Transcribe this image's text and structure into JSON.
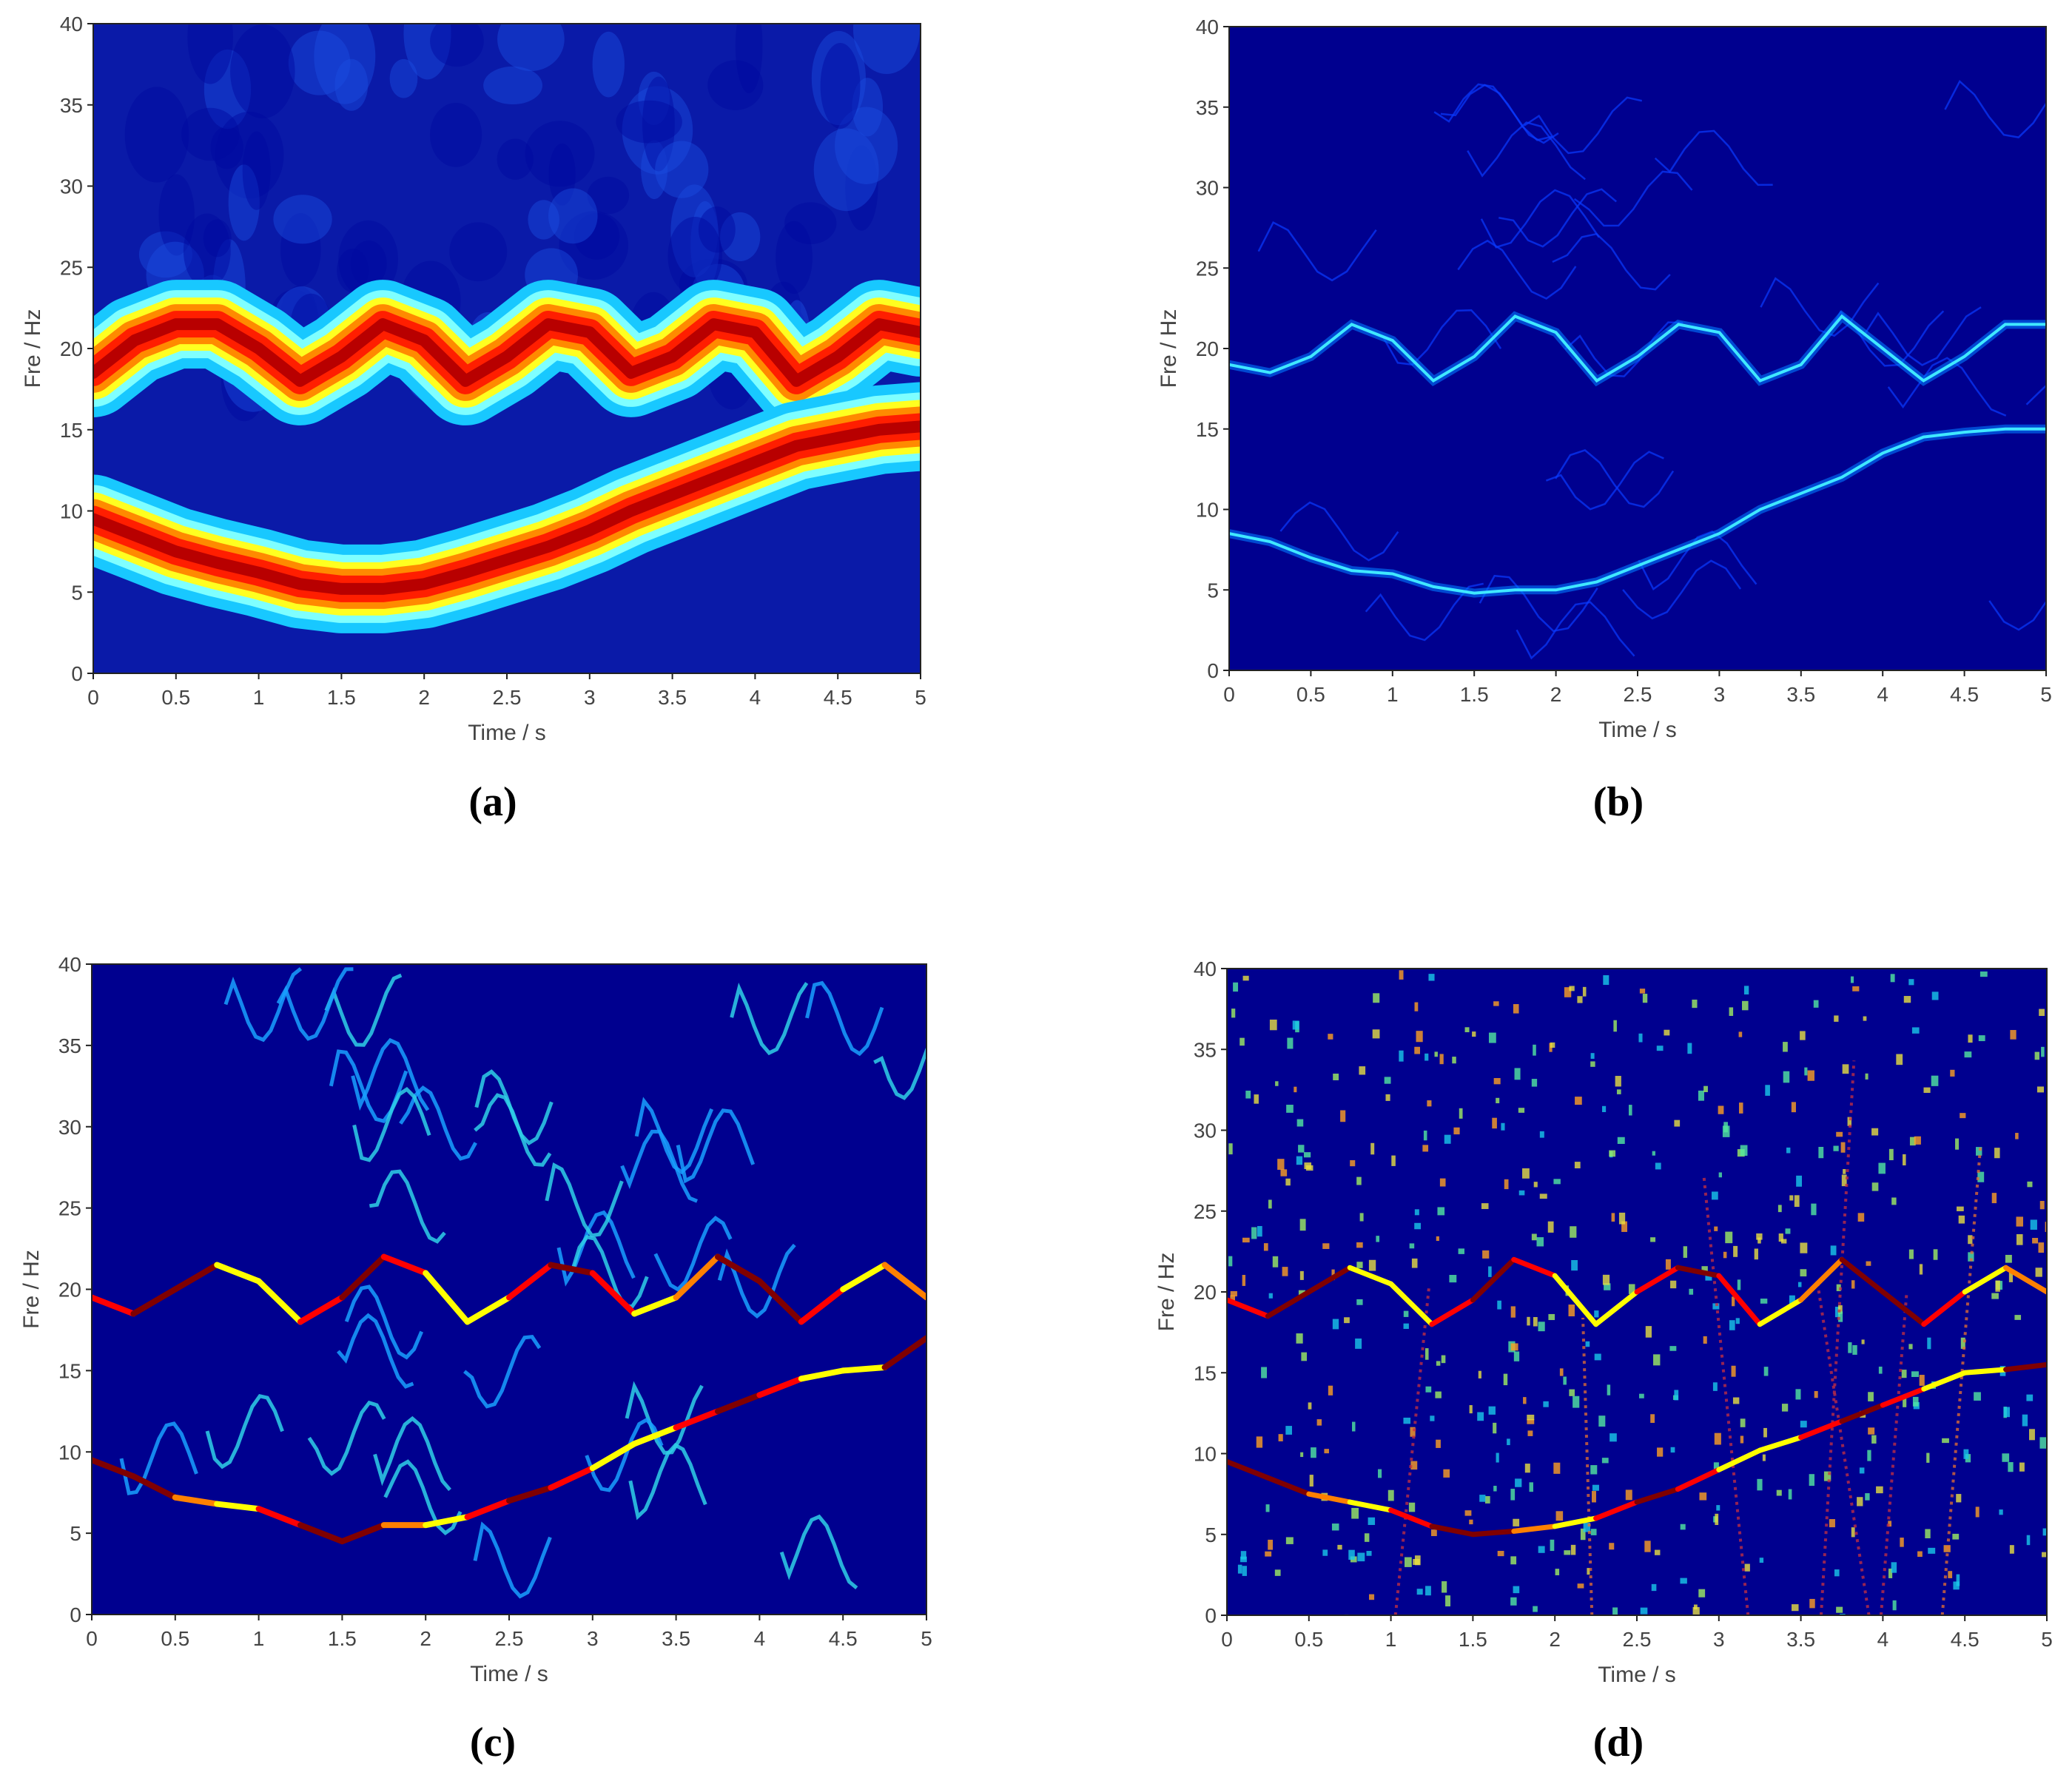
{
  "figure": {
    "panel_labels": [
      "(a)",
      "(b)",
      "(c)",
      "(d)"
    ]
  },
  "colormap": [
    "#00008f",
    "#0000ff",
    "#0080ff",
    "#00ffff",
    "#80ff80",
    "#ffff00",
    "#ff8000",
    "#ff0000",
    "#800000"
  ],
  "chart_data": [
    {
      "id": "a",
      "type": "heatmap",
      "title": "",
      "xlabel": "Time / s",
      "ylabel": "Fre / Hz",
      "xlim": [
        0,
        5
      ],
      "ylim": [
        0,
        40
      ],
      "xticks": [
        0,
        0.5,
        1,
        1.5,
        2,
        2.5,
        3,
        3.5,
        4,
        4.5,
        5
      ],
      "yticks": [
        0,
        5,
        10,
        15,
        20,
        25,
        30,
        35,
        40
      ],
      "xtick_labels": [
        "0",
        "0.5",
        "1",
        "1.5",
        "2",
        "2.5",
        "3",
        "3.5",
        "4",
        "4.5",
        "5"
      ],
      "ytick_labels": [
        "0",
        "5",
        "10",
        "15",
        "20",
        "25",
        "30",
        "35",
        "40"
      ],
      "style": "smooth",
      "series": [
        {
          "t": [
            0,
            0.25,
            0.5,
            0.75,
            1,
            1.25,
            1.5,
            1.75,
            2,
            2.25,
            2.5,
            2.75,
            3,
            3.25,
            3.5,
            3.75,
            4,
            4.25,
            4.5,
            4.75,
            5
          ],
          "f": [
            18.5,
            20.5,
            21.5,
            21.5,
            20,
            18,
            19.5,
            21.5,
            20.5,
            18,
            19.5,
            21.5,
            21,
            18.5,
            19.5,
            21.5,
            21,
            18,
            19.5,
            21.5,
            21
          ]
        },
        {
          "t": [
            0,
            0.25,
            0.5,
            0.75,
            1,
            1.25,
            1.5,
            1.75,
            2,
            2.25,
            2.5,
            2.75,
            3,
            3.25,
            3.5,
            3.75,
            4,
            4.25,
            4.5,
            4.75,
            5
          ],
          "f": [
            9.5,
            8.5,
            7.5,
            6.8,
            6.2,
            5.5,
            5.2,
            5.2,
            5.5,
            6.2,
            7,
            7.8,
            8.8,
            10,
            11,
            12,
            13,
            14,
            14.5,
            15,
            15.2
          ]
        }
      ]
    },
    {
      "id": "b",
      "type": "heatmap",
      "title": "",
      "xlabel": "Time / s",
      "ylabel": "Fre / Hz",
      "xlim": [
        0,
        5
      ],
      "ylim": [
        0,
        40
      ],
      "xticks": [
        0,
        0.5,
        1,
        1.5,
        2,
        2.5,
        3,
        3.5,
        4,
        4.5,
        5
      ],
      "yticks": [
        0,
        5,
        10,
        15,
        20,
        25,
        30,
        35,
        40
      ],
      "xtick_labels": [
        "0",
        "0.5",
        "1",
        "1.5",
        "2",
        "2.5",
        "3",
        "3.5",
        "4",
        "4.5",
        "5"
      ],
      "ytick_labels": [
        "0",
        "5",
        "10",
        "15",
        "20",
        "25",
        "30",
        "35",
        "40"
      ],
      "style": "thin",
      "series": [
        {
          "t": [
            0,
            0.25,
            0.5,
            0.75,
            1,
            1.25,
            1.5,
            1.75,
            2,
            2.25,
            2.5,
            2.75,
            3,
            3.25,
            3.5,
            3.75,
            4,
            4.25,
            4.5,
            4.75,
            5
          ],
          "f": [
            19,
            18.5,
            19.5,
            21.5,
            20.5,
            18,
            19.5,
            22,
            21,
            18,
            19.5,
            21.5,
            21,
            18,
            19,
            22,
            20,
            18,
            19.5,
            21.5,
            21.5
          ]
        },
        {
          "t": [
            0,
            0.25,
            0.5,
            0.75,
            1,
            1.25,
            1.5,
            1.75,
            2,
            2.25,
            2.5,
            2.75,
            3,
            3.25,
            3.5,
            3.75,
            4,
            4.25,
            4.5,
            4.75,
            5
          ],
          "f": [
            8.5,
            8,
            7,
            6.2,
            6,
            5.2,
            4.8,
            5,
            5,
            5.5,
            6.5,
            7.5,
            8.5,
            10,
            11,
            12,
            13.5,
            14.5,
            14.8,
            15,
            15
          ]
        }
      ]
    },
    {
      "id": "c",
      "type": "heatmap",
      "title": "",
      "xlabel": "Time / s",
      "ylabel": "Fre / Hz",
      "xlim": [
        0,
        5
      ],
      "ylim": [
        0,
        40
      ],
      "xticks": [
        0,
        0.5,
        1,
        1.5,
        2,
        2.5,
        3,
        3.5,
        4,
        4.5,
        5
      ],
      "yticks": [
        0,
        5,
        10,
        15,
        20,
        25,
        30,
        35,
        40
      ],
      "xtick_labels": [
        "0",
        "0.5",
        "1",
        "1.5",
        "2",
        "2.5",
        "3",
        "3.5",
        "4",
        "4.5",
        "5"
      ],
      "ytick_labels": [
        "0",
        "5",
        "10",
        "15",
        "20",
        "25",
        "30",
        "35",
        "40"
      ],
      "style": "ridge",
      "series": [
        {
          "t": [
            0,
            0.25,
            0.5,
            0.75,
            1,
            1.25,
            1.5,
            1.75,
            2,
            2.25,
            2.5,
            2.75,
            3,
            3.25,
            3.5,
            3.75,
            4,
            4.25,
            4.5,
            4.75,
            5
          ],
          "f": [
            19.5,
            18.5,
            20,
            21.5,
            20.5,
            18,
            19.5,
            22,
            21,
            18,
            19.5,
            21.5,
            21,
            18.5,
            19.5,
            22,
            20.5,
            18,
            20,
            21.5,
            19.5
          ]
        },
        {
          "t": [
            0,
            0.25,
            0.5,
            0.75,
            1,
            1.25,
            1.5,
            1.75,
            2,
            2.25,
            2.5,
            2.75,
            3,
            3.25,
            3.5,
            3.75,
            4,
            4.25,
            4.5,
            4.75,
            5
          ],
          "f": [
            9.5,
            8.5,
            7.2,
            6.8,
            6.5,
            5.5,
            4.5,
            5.5,
            5.5,
            6,
            7,
            7.8,
            9,
            10.5,
            11.5,
            12.5,
            13.5,
            14.5,
            15,
            15.2,
            17
          ]
        }
      ]
    },
    {
      "id": "d",
      "type": "heatmap",
      "title": "",
      "xlabel": "Time / s",
      "ylabel": "Fre / Hz",
      "xlim": [
        0,
        5
      ],
      "ylim": [
        0,
        40
      ],
      "xticks": [
        0,
        0.5,
        1,
        1.5,
        2,
        2.5,
        3,
        3.5,
        4,
        4.5,
        5
      ],
      "yticks": [
        0,
        5,
        10,
        15,
        20,
        25,
        30,
        35,
        40
      ],
      "xtick_labels": [
        "0",
        "0.5",
        "1",
        "1.5",
        "2",
        "2.5",
        "3",
        "3.5",
        "4",
        "4.5",
        "5"
      ],
      "ytick_labels": [
        "0",
        "5",
        "10",
        "15",
        "20",
        "25",
        "30",
        "35",
        "40"
      ],
      "style": "scatter",
      "series": [
        {
          "t": [
            0,
            0.25,
            0.5,
            0.75,
            1,
            1.25,
            1.5,
            1.75,
            2,
            2.25,
            2.5,
            2.75,
            3,
            3.25,
            3.5,
            3.75,
            4,
            4.25,
            4.5,
            4.75,
            5
          ],
          "f": [
            19.5,
            18.5,
            20,
            21.5,
            20.5,
            18,
            19.5,
            22,
            21,
            18,
            20,
            21.5,
            21,
            18,
            19.5,
            22,
            20,
            18,
            20,
            21.5,
            20
          ]
        },
        {
          "t": [
            0,
            0.25,
            0.5,
            0.75,
            1,
            1.25,
            1.5,
            1.75,
            2,
            2.25,
            2.5,
            2.75,
            3,
            3.25,
            3.5,
            3.75,
            4,
            4.25,
            4.5,
            4.75,
            5
          ],
          "f": [
            9.5,
            8.5,
            7.5,
            7,
            6.5,
            5.5,
            5,
            5.2,
            5.5,
            6,
            7,
            7.8,
            9,
            10.2,
            11,
            12,
            13,
            14,
            15,
            15.2,
            15.5
          ]
        }
      ]
    }
  ]
}
